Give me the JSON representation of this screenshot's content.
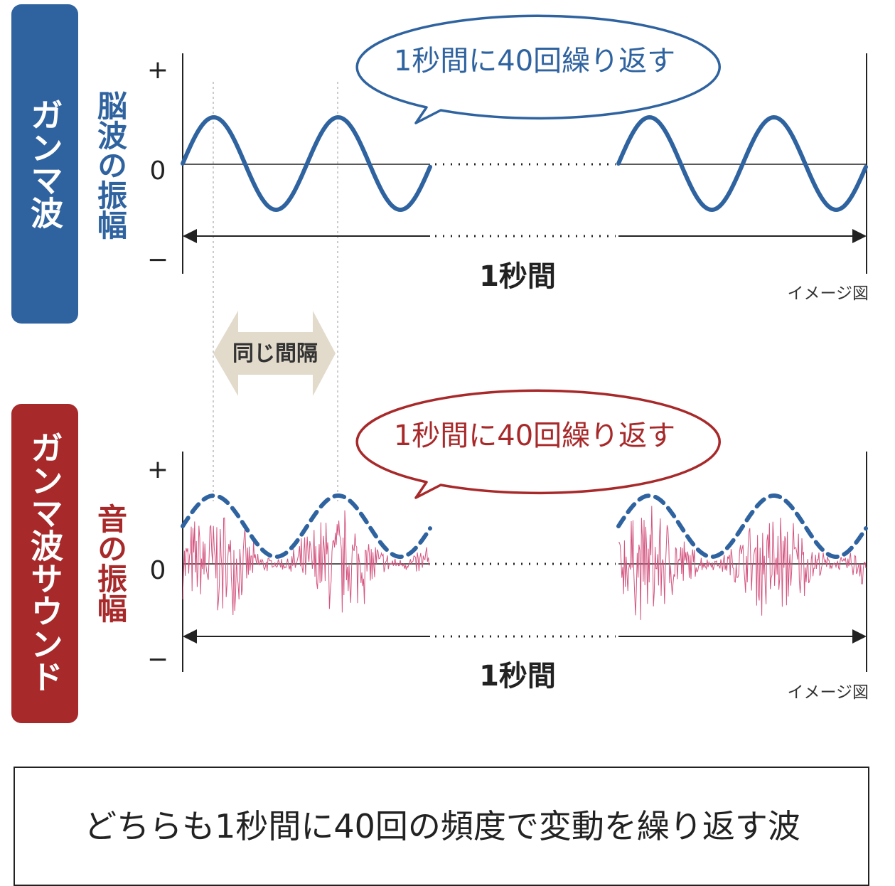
{
  "panels": [
    {
      "label": "ガンマ波",
      "axis_label": "脳波の振幅",
      "ticks": [
        "+",
        "0",
        "−"
      ],
      "bubble": "1秒間に40回繰り返す",
      "span": "1秒間",
      "note": "イメージ図"
    },
    {
      "label": "ガンマ波サウンド",
      "axis_label": "音の振幅",
      "ticks": [
        "+",
        "0",
        "−"
      ],
      "bubble": "1秒間に40回繰り返す",
      "span": "1秒間",
      "note": "イメージ図"
    }
  ],
  "interval_label": "同じ間隔",
  "footer": "どちらも1秒間に40回の頻度で変動を繰り返す波"
}
